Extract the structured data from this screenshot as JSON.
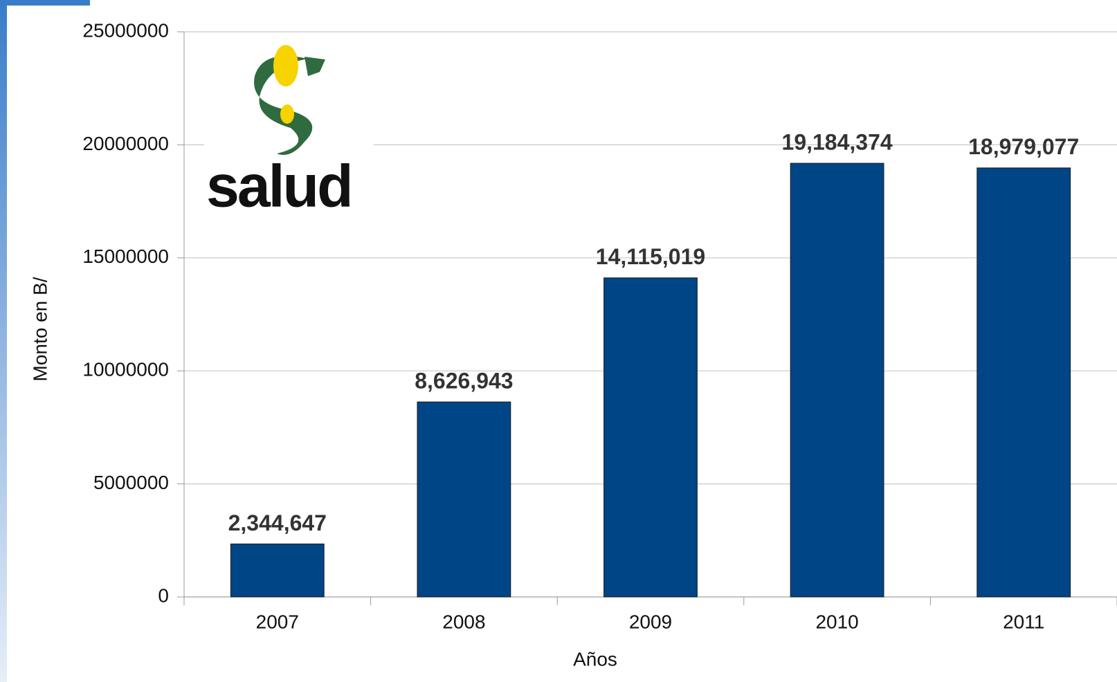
{
  "chart_data": {
    "type": "bar",
    "logo_text": "salud",
    "xlabel": "Años",
    "ylabel": "Monto en B/",
    "categories": [
      "2007",
      "2008",
      "2009",
      "2010",
      "2011"
    ],
    "values": [
      2344647,
      8626943,
      14115019,
      19184374,
      18979077
    ],
    "value_labels": [
      "2,344,647",
      "8,626,943",
      "14,115,019",
      "19,184,374",
      "18,979,077"
    ],
    "color": "#004586",
    "ylim": [
      0,
      25000000
    ],
    "yticks": [
      0,
      5000000,
      10000000,
      15000000,
      20000000,
      25000000
    ],
    "grid": true
  }
}
